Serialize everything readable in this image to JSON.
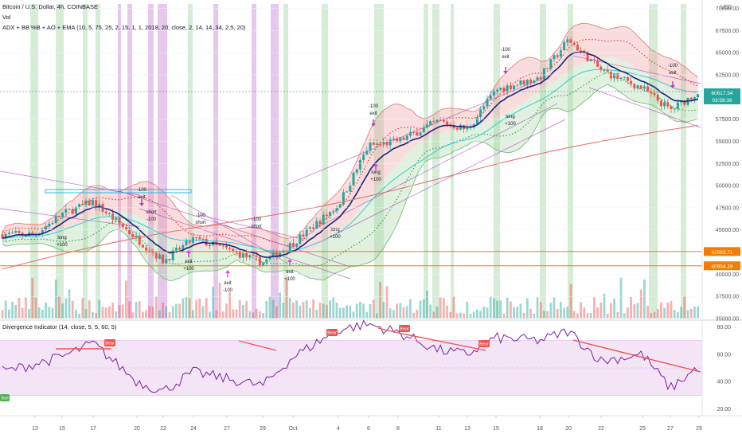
{
  "header": {
    "title": "Bitcoin / U.S. Dollar, 4h, COINBASE",
    "vol_label": "Vol",
    "indicator": "ADX + BB %B + AO + EMA (10, 5, 75, 25, 2, 15, 1, 1, 2018, 20, close, 2, 14, 14, 34, 2.5, 20)",
    "currency": "USD"
  },
  "price_axis": {
    "ticks": [
      "70000.00",
      "67500.00",
      "65000.00",
      "62500.00",
      "57500.00",
      "55000.00",
      "52500.00",
      "50000.00",
      "47500.00",
      "45000.00",
      "40000.00",
      "37500.00",
      "35000.00"
    ],
    "last_price": "60617.54",
    "countdown": "03:58:36",
    "level_1": "42563.71",
    "level_2": "40954.19"
  },
  "rsi_panel": {
    "title": "Divergence Indicator (14, close, 5, 5, 60, 5)",
    "ticks": [
      "80.00",
      "60.00",
      "40.00",
      "20.00"
    ],
    "bear_label": "Bear",
    "bull_label": "Bull"
  },
  "time_axis": {
    "labels": [
      "13",
      "15",
      "17",
      "20",
      "22",
      "24",
      "27",
      "29",
      "Oct",
      "4",
      "6",
      "8",
      "11",
      "13",
      "15",
      "18",
      "20",
      "22",
      "25",
      "27",
      "29"
    ]
  },
  "signals": {
    "exit": "exit",
    "short": "short",
    "long": "long",
    "plus100": "+100",
    "minus100": "-100"
  },
  "colors": {
    "up": "#26a69a",
    "down": "#ef5350",
    "green_band": "#c8e6c9",
    "purple_band": "#e1bee7",
    "rsi_line": "#7b1fa2",
    "rsi_fill": "#f3e5f5",
    "ema_long": "#e57373",
    "level_line": "#f57c00"
  },
  "chart_data": {
    "type": "line",
    "symbol": "BTCUSD",
    "timeframe": "4h",
    "x_start": "Sep 12",
    "x_end": "Oct 29",
    "ylim": [
      35000,
      70000
    ],
    "key_levels": [
      42563.71,
      40954.19
    ],
    "last_price": 60617.54,
    "price_waypoints": [
      {
        "x": "Sep 13",
        "y": 44500
      },
      {
        "x": "Sep 15",
        "y": 46800
      },
      {
        "x": "Sep 17",
        "y": 48200
      },
      {
        "x": "Sep 20",
        "y": 44000
      },
      {
        "x": "Sep 22",
        "y": 41500
      },
      {
        "x": "Sep 24",
        "y": 44000
      },
      {
        "x": "Sep 27",
        "y": 42800
      },
      {
        "x": "Sep 29",
        "y": 41300
      },
      {
        "x": "Oct 1",
        "y": 43500
      },
      {
        "x": "Oct 4",
        "y": 47800
      },
      {
        "x": "Oct 6",
        "y": 54500
      },
      {
        "x": "Oct 8",
        "y": 55000
      },
      {
        "x": "Oct 11",
        "y": 57300
      },
      {
        "x": "Oct 13",
        "y": 56300
      },
      {
        "x": "Oct 15",
        "y": 60800
      },
      {
        "x": "Oct 18",
        "y": 62200
      },
      {
        "x": "Oct 20",
        "y": 66500
      },
      {
        "x": "Oct 22",
        "y": 63000
      },
      {
        "x": "Oct 25",
        "y": 61000
      },
      {
        "x": "Oct 27",
        "y": 58500
      },
      {
        "x": "Oct 29",
        "y": 60617.54
      }
    ],
    "rsi": {
      "ylim": [
        15,
        85
      ],
      "overbought": 70,
      "oversold": 30,
      "mid": 50,
      "waypoints": [
        {
          "x": "Sep 12",
          "y": 48
        },
        {
          "x": "Sep 15",
          "y": 58
        },
        {
          "x": "Sep 17",
          "y": 68
        },
        {
          "x": "Sep 20",
          "y": 40
        },
        {
          "x": "Sep 22",
          "y": 33
        },
        {
          "x": "Sep 24",
          "y": 47
        },
        {
          "x": "Sep 27",
          "y": 42
        },
        {
          "x": "Sep 29",
          "y": 37
        },
        {
          "x": "Oct 1",
          "y": 58
        },
        {
          "x": "Oct 4",
          "y": 78
        },
        {
          "x": "Oct 6",
          "y": 82
        },
        {
          "x": "Oct 8",
          "y": 76
        },
        {
          "x": "Oct 11",
          "y": 63
        },
        {
          "x": "Oct 13",
          "y": 60
        },
        {
          "x": "Oct 15",
          "y": 72
        },
        {
          "x": "Oct 18",
          "y": 70
        },
        {
          "x": "Oct 20",
          "y": 77
        },
        {
          "x": "Oct 22",
          "y": 55
        },
        {
          "x": "Oct 25",
          "y": 60
        },
        {
          "x": "Oct 27",
          "y": 35
        },
        {
          "x": "Oct 29",
          "y": 51
        }
      ]
    }
  }
}
